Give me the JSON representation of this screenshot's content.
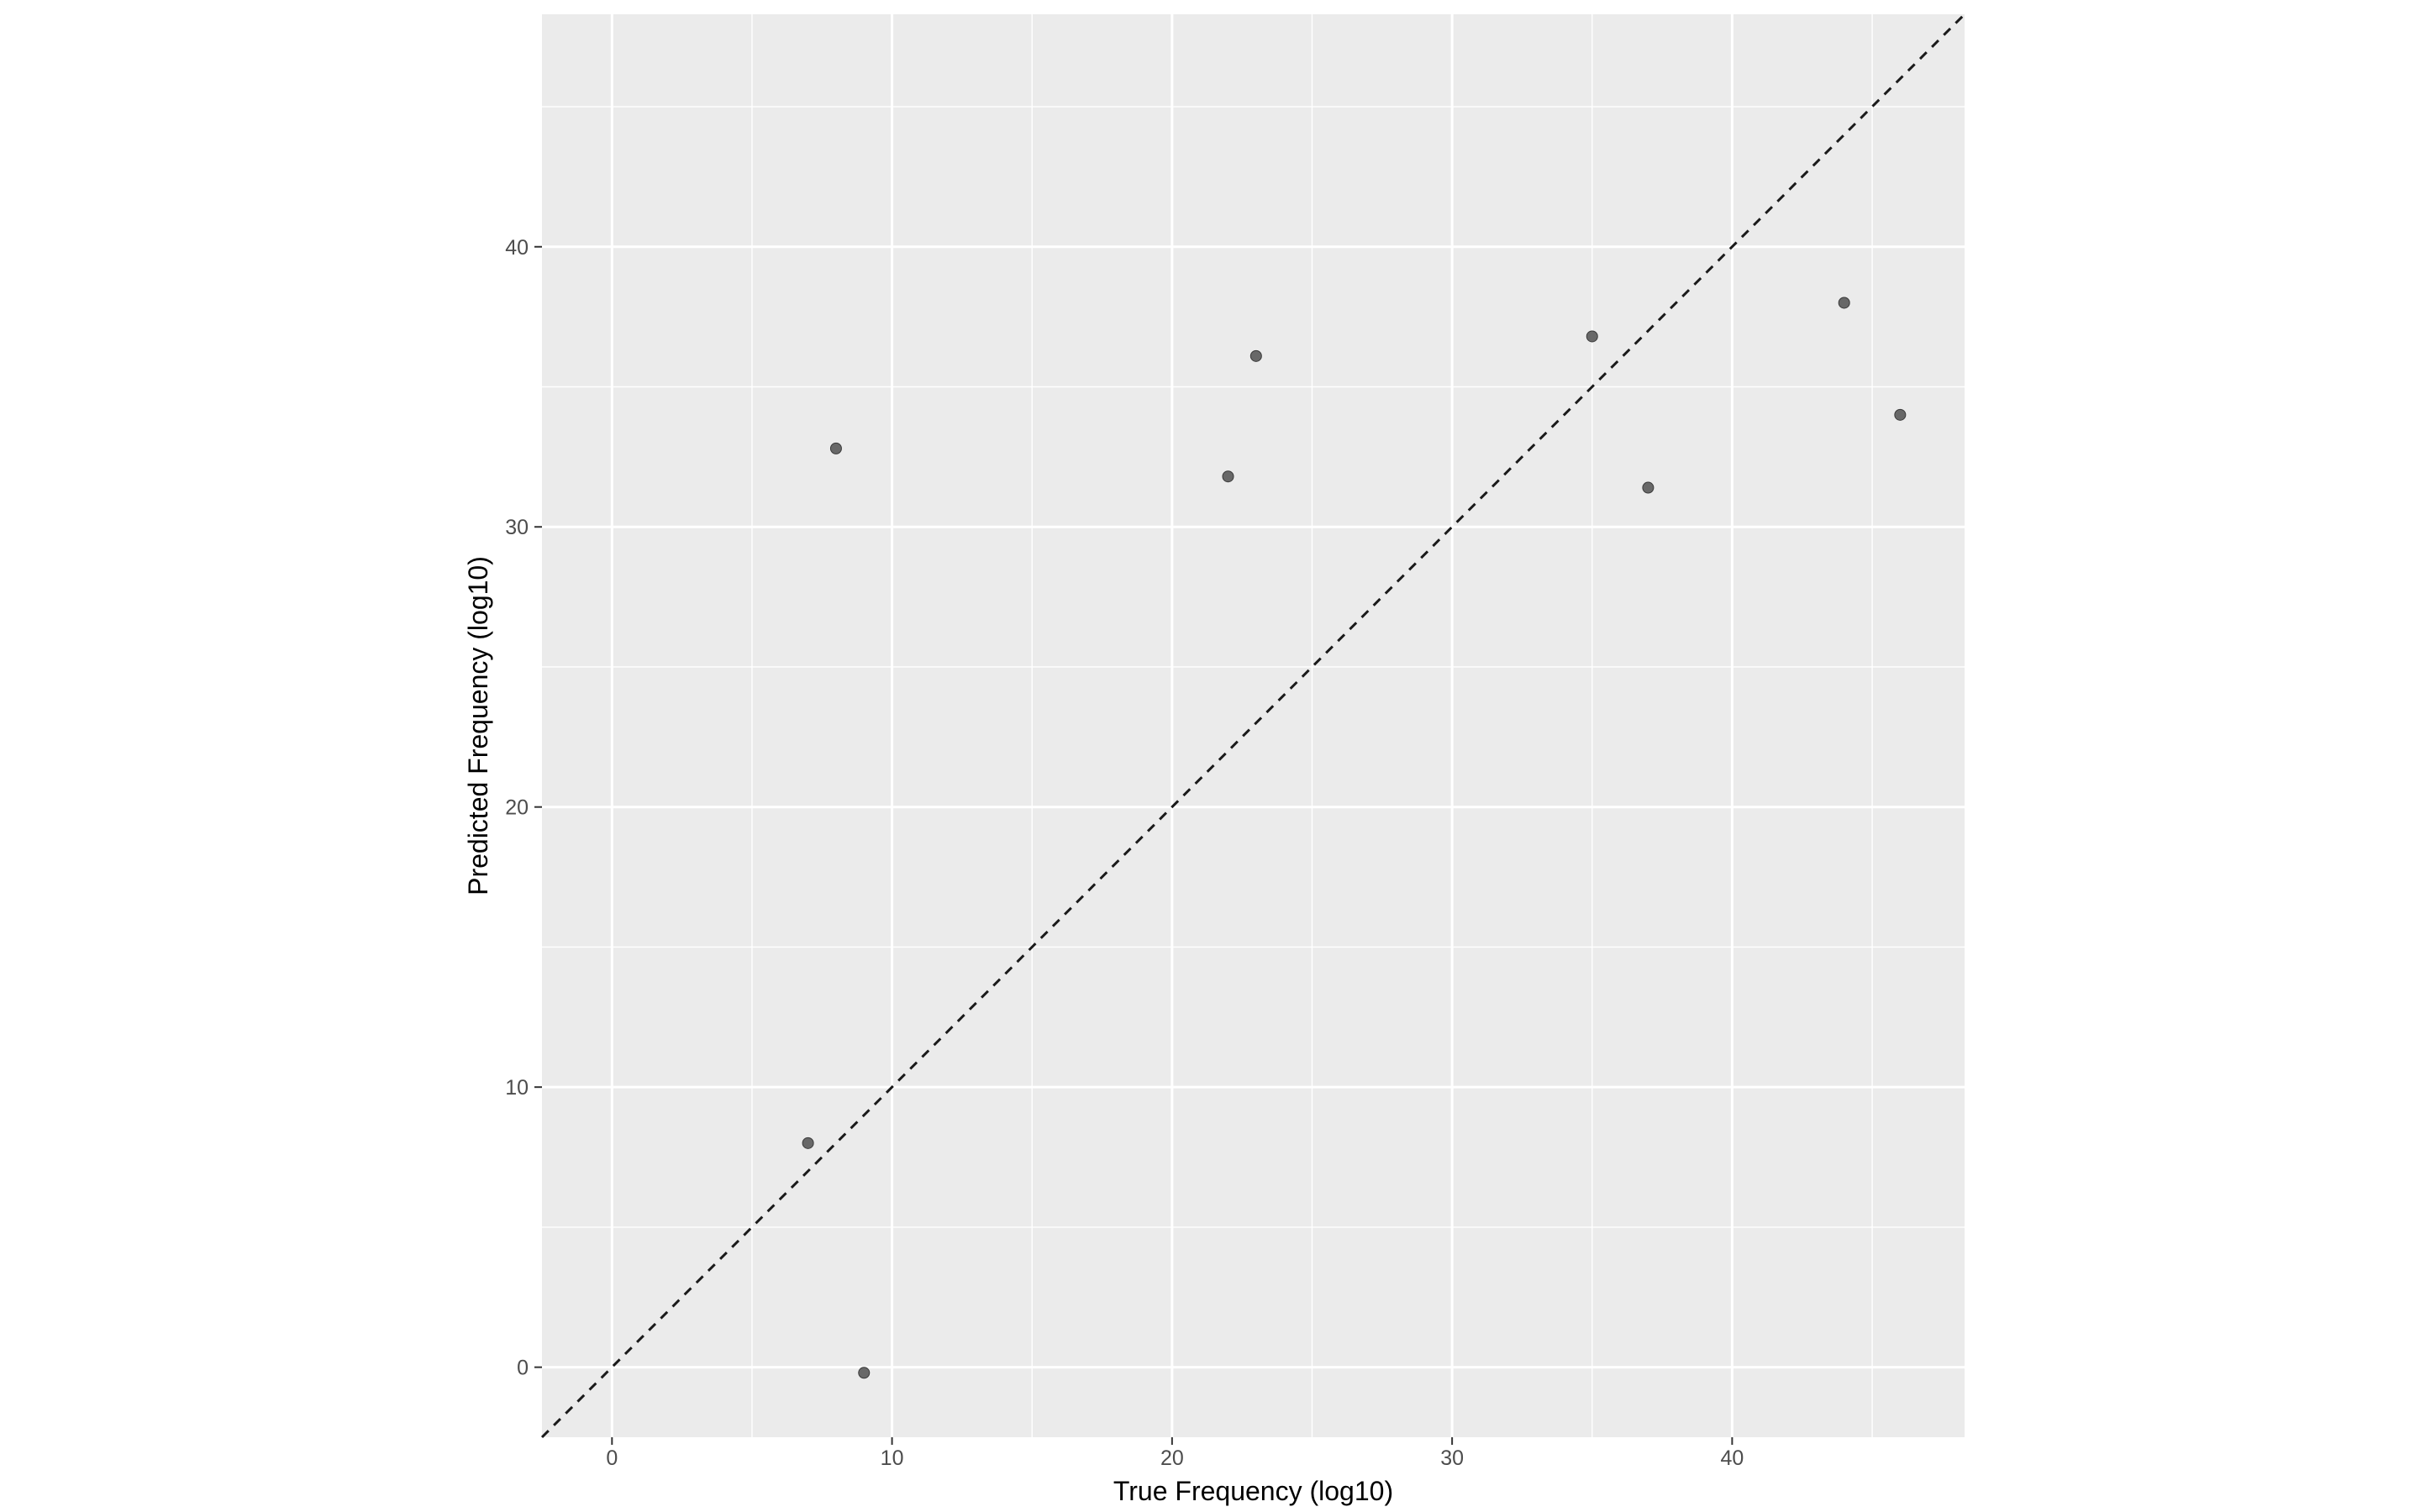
{
  "chart_data": {
    "type": "scatter",
    "title": "",
    "xlabel": "True Frequency (log10)",
    "ylabel": "Predicted Frequency (log10)",
    "xlim": [
      -2.5,
      48.3
    ],
    "ylim": [
      -2.5,
      48.3
    ],
    "x_ticks": [
      0,
      10,
      20,
      30,
      40
    ],
    "y_ticks": [
      0,
      10,
      20,
      30,
      40
    ],
    "grid": true,
    "legend": "none",
    "reference_line": {
      "type": "identity",
      "style": "dashed",
      "slope": 1,
      "intercept": 0
    },
    "points": [
      {
        "x": 7,
        "y": 8.0
      },
      {
        "x": 8,
        "y": 32.8
      },
      {
        "x": 9,
        "y": -0.2
      },
      {
        "x": 22,
        "y": 31.8
      },
      {
        "x": 23,
        "y": 36.1
      },
      {
        "x": 35,
        "y": 36.8
      },
      {
        "x": 37,
        "y": 31.4
      },
      {
        "x": 44,
        "y": 38.0
      },
      {
        "x": 46,
        "y": 34.0
      }
    ],
    "colors": {
      "panel_background": "#ebebeb",
      "grid_line": "#ffffff",
      "point": "#5a5a5a",
      "reference_line": "#1a1a1a"
    }
  }
}
